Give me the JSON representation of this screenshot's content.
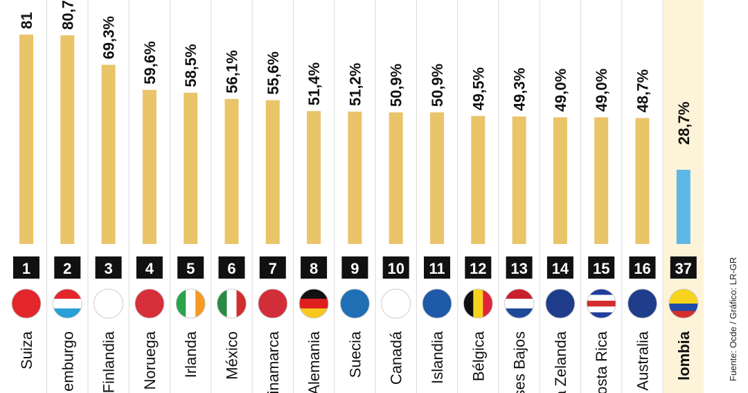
{
  "chart_data": {
    "type": "bar",
    "categories": [
      "Suiza",
      "emburgo",
      "Finlandia",
      "Noruega",
      "Irlanda",
      "México",
      "inamarca",
      "Alemania",
      "Suecia",
      "Canadá",
      "Islandia",
      "Bélgica",
      "ses Bajos",
      "a Zelanda",
      "osta Rica",
      "Australia",
      "lombia"
    ],
    "ranks": [
      "1",
      "2",
      "3",
      "4",
      "5",
      "6",
      "7",
      "8",
      "9",
      "10",
      "11",
      "12",
      "13",
      "14",
      "15",
      "16",
      "37"
    ],
    "values": [
      81,
      80.7,
      69.3,
      59.6,
      58.5,
      56.1,
      55.6,
      51.4,
      51.2,
      50.9,
      50.9,
      49.5,
      49.3,
      49.0,
      49.0,
      48.7,
      28.7
    ],
    "value_labels": [
      "81",
      "80,7",
      "69,3%",
      "59,6%",
      "58,5%",
      "56,1%",
      "55,6%",
      "51,4%",
      "51,2%",
      "50,9%",
      "50,9%",
      "49,5%",
      "49,3%",
      "49,0%",
      "49,0%",
      "48,7%",
      "28,7%"
    ],
    "colors": [
      "#e9c469",
      "#e9c469",
      "#e9c469",
      "#e9c469",
      "#e9c469",
      "#e9c469",
      "#e9c469",
      "#e9c469",
      "#e9c469",
      "#e9c469",
      "#e9c469",
      "#e9c469",
      "#e9c469",
      "#e9c469",
      "#e9c469",
      "#e9c469",
      "#5db8e6"
    ],
    "source": "Fuente: Ocde / Gráfico: LR-GR"
  }
}
